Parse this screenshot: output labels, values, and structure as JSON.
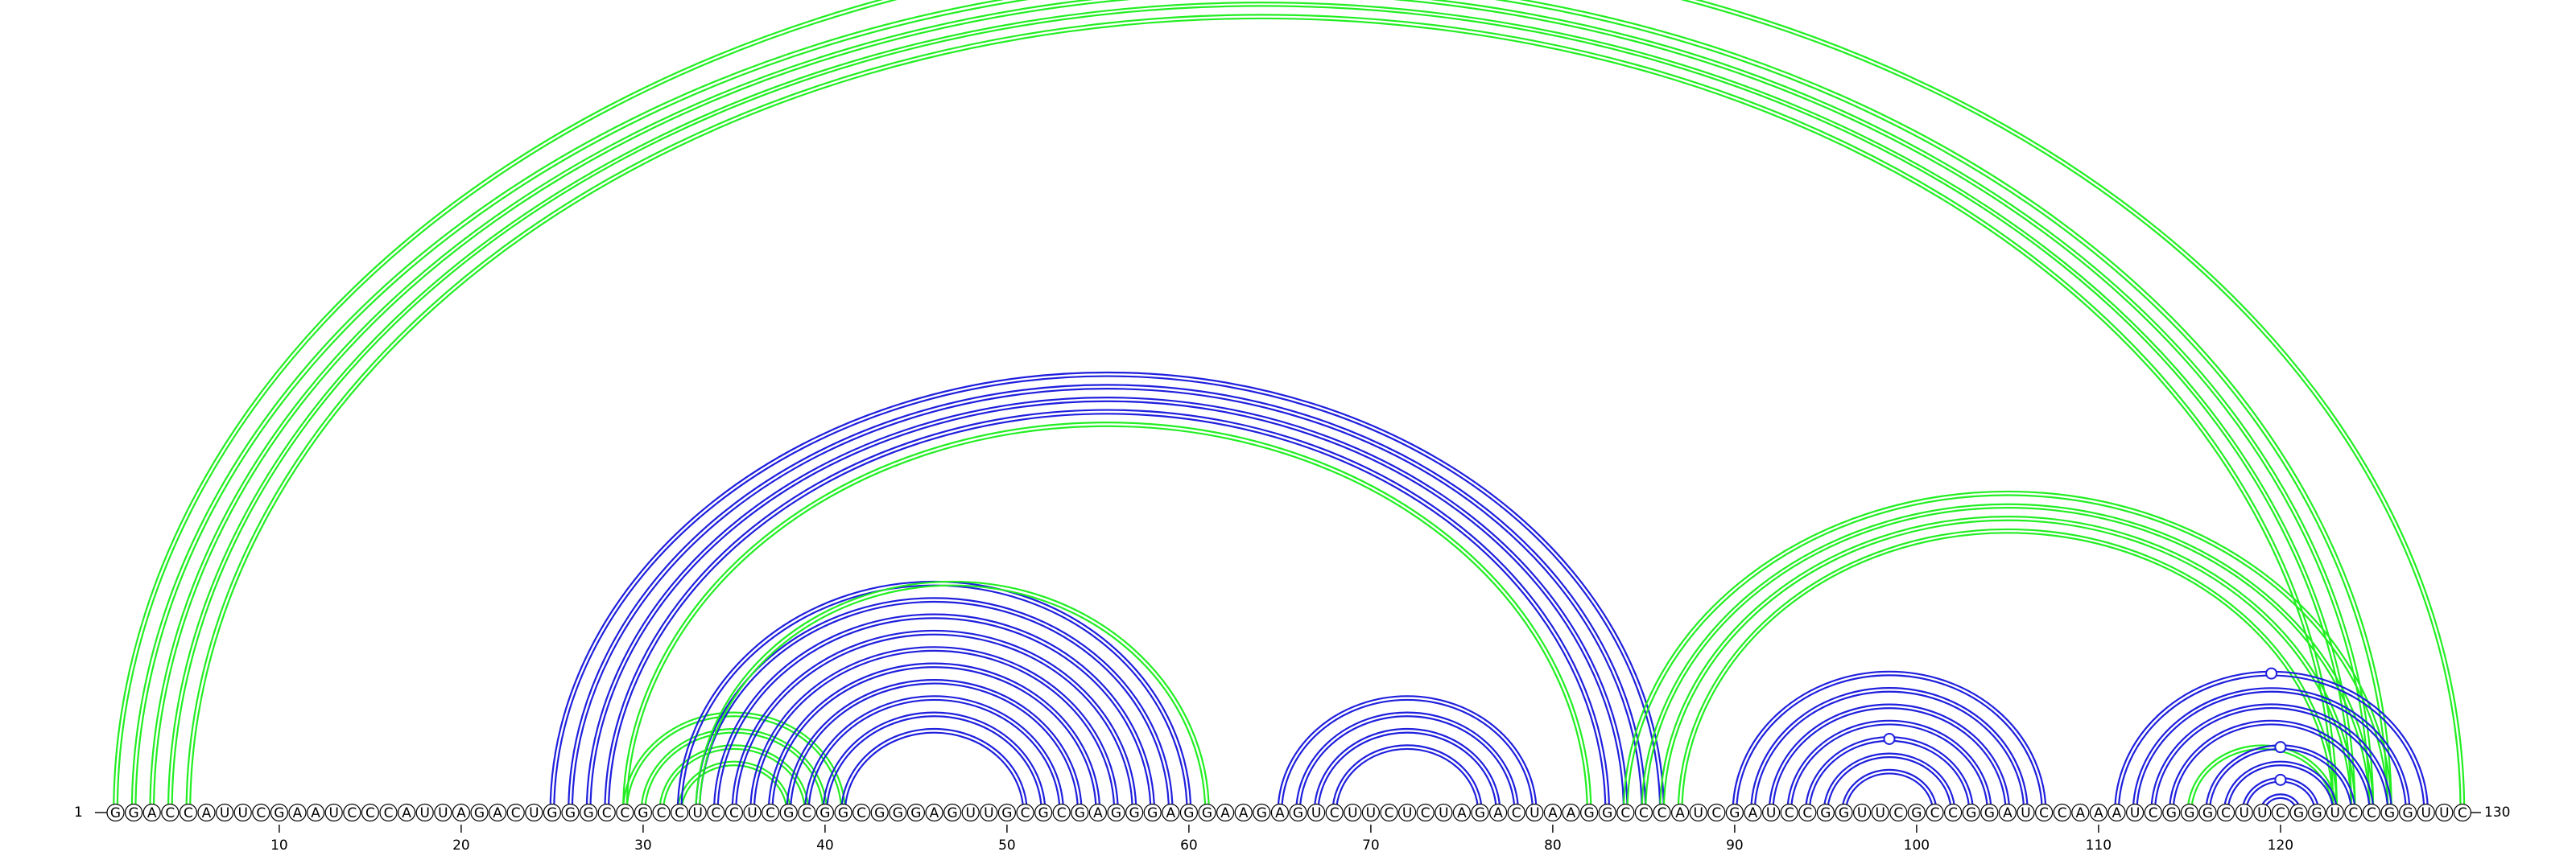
{
  "diagram": {
    "sequence": "GGACCAUUCGAAUCCCAUUAGACUGGGCCGCCUCCUCGCGGCGGGAGUUGCGCGAGGGAGGAAGAGUCUUCUCUAGACUAAGGCCCAUCGAUCCGGUUCGCCGGAUCCAAAUCGGGCUUCGGUCCGGUUC",
    "start_label": "1",
    "end_label": "130",
    "tick_positions": [
      10,
      20,
      30,
      40,
      50,
      60,
      70,
      80,
      90,
      100,
      110,
      120
    ],
    "tick_labels": [
      "10",
      "20",
      "30",
      "40",
      "50",
      "60",
      "70",
      "80",
      "90",
      "100",
      "110",
      "120"
    ],
    "colors": {
      "blue": "#1f1fdd",
      "green": "#22ee22",
      "circle_stroke": "#000000"
    },
    "helices": [
      {
        "color": "green",
        "i": 1,
        "j": 130,
        "n": 1
      },
      {
        "color": "green",
        "i": 2,
        "j": 126,
        "n": 4
      },
      {
        "color": "blue",
        "i": 25,
        "j": 86,
        "n": 4
      },
      {
        "color": "green",
        "i": 29,
        "j": 82,
        "n": 1
      },
      {
        "color": "green",
        "i": 29,
        "j": 41,
        "n": 4
      },
      {
        "color": "blue",
        "i": 32,
        "j": 60,
        "n": 10
      },
      {
        "color": "green",
        "i": 33,
        "j": 61,
        "n": 1
      },
      {
        "color": "blue",
        "i": 65,
        "j": 79,
        "n": 4
      },
      {
        "color": "green",
        "i": 84,
        "j": 126,
        "n": 4
      },
      {
        "color": "blue",
        "i": 90,
        "j": 107,
        "n": 7
      },
      {
        "color": "blue",
        "i": 111,
        "j": 128,
        "n": 4
      },
      {
        "color": "green",
        "i": 115,
        "j": 123,
        "n": 1
      },
      {
        "color": "blue",
        "i": 116,
        "j": 124,
        "n": 4
      }
    ],
    "markers": [
      {
        "color": "green",
        "i": 2,
        "j": 126
      },
      {
        "color": "blue",
        "i": 94,
        "j": 103
      },
      {
        "color": "blue",
        "i": 111,
        "j": 128
      },
      {
        "color": "blue",
        "i": 116,
        "j": 124
      },
      {
        "color": "blue",
        "i": 118,
        "j": 122
      }
    ]
  }
}
